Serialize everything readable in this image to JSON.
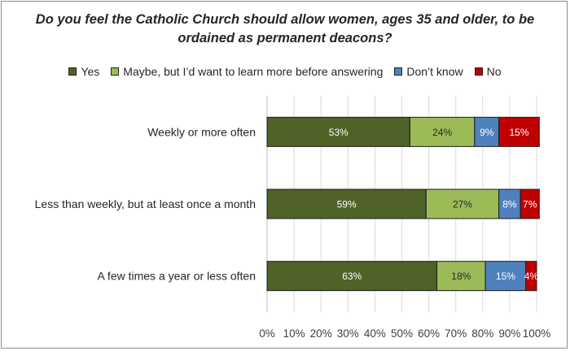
{
  "chart_data": {
    "type": "bar",
    "orientation": "horizontal",
    "stacked": true,
    "title": "Do you feel the Catholic Church should allow women, ages 35 and older, to be ordained as permanent deacons?",
    "categories": [
      "Weekly or more often",
      "Less than weekly, but at least once a month",
      "A few times a year or less often"
    ],
    "series": [
      {
        "name": "Yes",
        "color": "#4f6228",
        "values": [
          53,
          59,
          63
        ],
        "labels": [
          "53%",
          "59%",
          "63%"
        ]
      },
      {
        "name": "Maybe, but I’d want to learn more before answering",
        "color": "#9bbb59",
        "values": [
          24,
          27,
          18
        ],
        "labels": [
          "24%",
          "27%",
          "18%"
        ]
      },
      {
        "name": "Don’t know",
        "color": "#4f81bd",
        "values": [
          9,
          8,
          15
        ],
        "labels": [
          "9%",
          "8%",
          "15%"
        ]
      },
      {
        "name": "No",
        "color": "#c00000",
        "values": [
          15,
          7,
          4
        ],
        "labels": [
          "15%",
          "7%",
          "4%"
        ]
      }
    ],
    "xlim": [
      0,
      100
    ],
    "xticks": [
      "0%",
      "10%",
      "20%",
      "30%",
      "40%",
      "50%",
      "60%",
      "70%",
      "80%",
      "90%",
      "100%"
    ],
    "xlabel": "",
    "ylabel": "",
    "legend_position": "top",
    "grid": true
  }
}
